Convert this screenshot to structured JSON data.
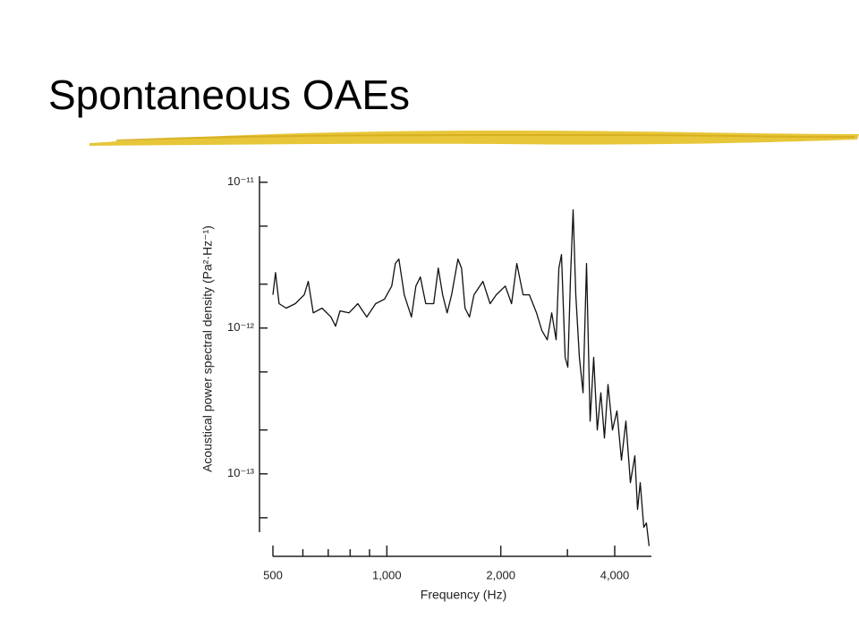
{
  "slide": {
    "title": "Spontaneous OAEs"
  },
  "chart_data": {
    "type": "line",
    "xlabel": "Frequency (Hz)",
    "ylabel": "Acoustical power spectral density (Pa²·Hz⁻¹)",
    "xscale": "log",
    "yscale": "log",
    "color": "#111111",
    "xlim": [
      500,
      5000
    ],
    "ylim": [
      3e-14,
      1.1e-11
    ],
    "xticks": [
      500,
      {
        "value": 1000,
        "label": "1,000"
      },
      {
        "value": 2000,
        "label": "2,000"
      },
      {
        "value": 4000,
        "label": "4,000"
      }
    ],
    "xminorticks": [
      600,
      700,
      800,
      900,
      3000
    ],
    "yticks": [
      {
        "value": 1e-11,
        "label": "10⁻¹¹"
      },
      {
        "value": 1e-12,
        "label": "10⁻¹²"
      },
      {
        "value": 1e-13,
        "label": "10⁻¹³"
      }
    ],
    "yminorticks": [
      5e-12,
      2e-12,
      5e-13,
      2e-13,
      5e-14
    ],
    "x": [
      500,
      508,
      519,
      542,
      573,
      605,
      620,
      639,
      674,
      712,
      732,
      752,
      794,
      838,
      885,
      934,
      986,
      1030,
      1053,
      1076,
      1112,
      1161,
      1193,
      1226,
      1267,
      1330,
      1367,
      1404,
      1443,
      1483,
      1541,
      1575,
      1609,
      1653,
      1699,
      1794,
      1874,
      1946,
      2055,
      2135,
      2205,
      2291,
      2380,
      2486,
      2568,
      2654,
      2726,
      2801,
      2848,
      2894,
      2959,
      3007,
      3056,
      3106,
      3157,
      3226,
      3298,
      3370,
      3444,
      3520,
      3597,
      3676,
      3757,
      3840,
      3945,
      4055,
      4167,
      4281,
      4399,
      4520,
      4595,
      4671,
      4773,
      4850,
      4931
    ],
    "values": [
      1.69e-12,
      2.4e-12,
      1.47e-12,
      1.37e-12,
      1.47e-12,
      1.69e-12,
      2.09e-12,
      1.27e-12,
      1.37e-12,
      1.19e-12,
      1.03e-12,
      1.31e-12,
      1.27e-12,
      1.47e-12,
      1.19e-12,
      1.47e-12,
      1.58e-12,
      1.94e-12,
      2.77e-12,
      2.97e-12,
      1.69e-12,
      1.19e-12,
      1.94e-12,
      2.24e-12,
      1.47e-12,
      1.47e-12,
      2.58e-12,
      1.69e-12,
      1.27e-12,
      1.69e-12,
      2.97e-12,
      2.58e-12,
      1.37e-12,
      1.19e-12,
      1.69e-12,
      2.09e-12,
      1.47e-12,
      1.69e-12,
      1.94e-12,
      1.47e-12,
      2.77e-12,
      1.69e-12,
      1.69e-12,
      1.27e-12,
      9.6e-13,
      8.3e-13,
      1.27e-12,
      8.3e-13,
      2.58e-12,
      3.19e-12,
      6.3e-13,
      5.4e-13,
      2.24e-12,
      6.46e-12,
      1.69e-12,
      6.3e-13,
      3.6e-13,
      2.77e-12,
      2.3e-13,
      6.3e-13,
      2e-13,
      3.6e-13,
      1.76e-13,
      4.1e-13,
      2e-13,
      2.7e-13,
      1.24e-13,
      2.3e-13,
      8.7e-14,
      1.33e-13,
      5.7e-14,
      8.7e-14,
      4.3e-14,
      4.6e-14,
      3.2e-14
    ]
  }
}
